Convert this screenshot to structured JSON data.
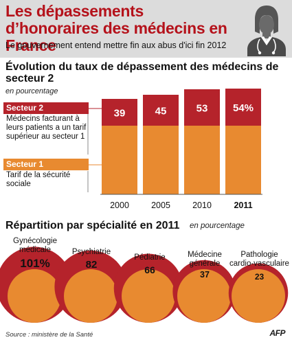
{
  "header": {
    "title": "Les dépassements d’honoraires des médecins en France",
    "subtitle": "Le gouvernement entend mettre fin aux abus d'ici fin 2012"
  },
  "evolution": {
    "title": "Évolution du taux de dépassement des médecins de secteur 2",
    "unit": "en pourcentage",
    "legend": [
      {
        "label": "Secteur 2",
        "description": "Médecins facturant à leurs patients a un tarif supérieur au secteur 1",
        "color": "#b5232b"
      },
      {
        "label": "Secteur 1",
        "description": "Tarif de la sécurité sociale",
        "color": "#e88a30"
      }
    ]
  },
  "chart_data": [
    {
      "type": "bar",
      "title": "Évolution du taux de dépassement des médecins de secteur 2",
      "unit": "en pourcentage",
      "stacked": true,
      "categories": [
        "2000",
        "2005",
        "2010",
        "2011"
      ],
      "series": [
        {
          "name": "Secteur 1",
          "values": [
            100,
            100,
            100,
            100
          ],
          "color": "#e88a30"
        },
        {
          "name": "Secteur 2",
          "values": [
            39,
            45,
            53,
            54
          ],
          "labels": [
            "39",
            "45",
            "53",
            "54%"
          ],
          "color": "#b5232b"
        }
      ],
      "highlight": "2011",
      "grid": false
    },
    {
      "type": "bubble",
      "title": "Répartition par spécialité en 2011",
      "unit": "en pourcentage",
      "categories": [
        "Gynécologie médicale",
        "Psychiatrie",
        "Pédiatrie",
        "Médecine générale",
        "Pathologie cardio-vasculaire"
      ],
      "values": [
        101,
        82,
        66,
        37,
        23
      ],
      "labels": [
        "101%",
        "82",
        "66",
        "37",
        "23"
      ],
      "base_value": 100,
      "colors": {
        "base": "#e88a30",
        "overrun": "#b5232b"
      }
    }
  ],
  "specialties_title": "Répartition par spécialité en 2011",
  "specialties_unit": "en pourcentage",
  "specialties": [
    {
      "name": "Gynécologie\nmédicale",
      "value_label": "101%"
    },
    {
      "name": "Psychiatrie",
      "value_label": "82"
    },
    {
      "name": "Pédiatrie",
      "value_label": "66"
    },
    {
      "name": "Médecine\ngénérale",
      "value_label": "37"
    },
    {
      "name": "Pathologie\ncardio-vasculaire",
      "value_label": "23"
    }
  ],
  "footer": {
    "source": "Source : ministère de la Santé",
    "agency": "AFP"
  }
}
